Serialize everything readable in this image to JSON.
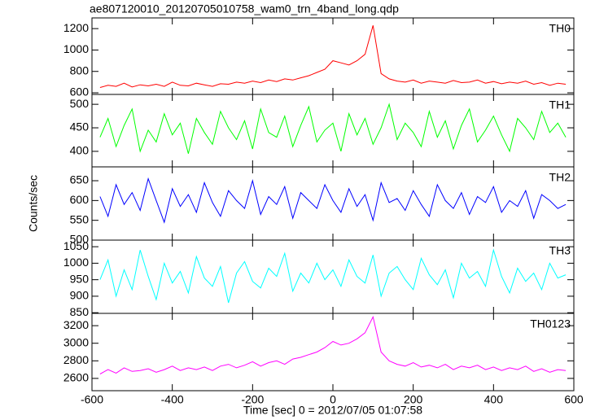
{
  "chart_data": [
    {
      "type": "line",
      "title": "ae807120010_20120705010758_wam0_trn_4band_long.qdp",
      "xlim": [
        -600,
        600
      ],
      "xticks": [
        -600,
        -400,
        -200,
        0,
        200,
        400,
        600
      ],
      "ylim": [
        585,
        1300
      ],
      "yticks": [
        600,
        800,
        1000,
        1200
      ],
      "x": [
        -580,
        -560,
        -540,
        -520,
        -500,
        -480,
        -460,
        -440,
        -420,
        -400,
        -380,
        -360,
        -340,
        -320,
        -300,
        -280,
        -260,
        -240,
        -220,
        -200,
        -180,
        -160,
        -140,
        -120,
        -100,
        -80,
        -60,
        -40,
        -20,
        0,
        20,
        40,
        60,
        80,
        100,
        120,
        140,
        160,
        180,
        200,
        220,
        240,
        260,
        280,
        300,
        320,
        340,
        360,
        380,
        400,
        420,
        440,
        460,
        480,
        500,
        520,
        540,
        560,
        580
      ],
      "series": [
        {
          "name": "TH0",
          "color": "#ff0000",
          "values": [
            650,
            670,
            660,
            690,
            655,
            675,
            665,
            680,
            660,
            700,
            670,
            665,
            690,
            675,
            660,
            685,
            680,
            700,
            690,
            710,
            695,
            720,
            705,
            730,
            720,
            740,
            760,
            790,
            820,
            900,
            880,
            860,
            900,
            960,
            1230,
            780,
            730,
            710,
            700,
            720,
            690,
            710,
            700,
            690,
            715,
            695,
            700,
            720,
            690,
            705,
            685,
            700,
            690,
            710,
            680,
            695,
            670,
            690,
            680
          ]
        }
      ]
    },
    {
      "type": "line",
      "xlim": [
        -600,
        600
      ],
      "xticks": [
        -600,
        -400,
        -200,
        0,
        200,
        400,
        600
      ],
      "ylim": [
        367,
        521
      ],
      "yticks": [
        400,
        450,
        500
      ],
      "x": [
        -580,
        -560,
        -540,
        -520,
        -500,
        -480,
        -460,
        -440,
        -420,
        -400,
        -380,
        -360,
        -340,
        -320,
        -300,
        -280,
        -260,
        -240,
        -220,
        -200,
        -180,
        -160,
        -140,
        -120,
        -100,
        -80,
        -60,
        -40,
        -20,
        0,
        20,
        40,
        60,
        80,
        100,
        120,
        140,
        160,
        180,
        200,
        220,
        240,
        260,
        280,
        300,
        320,
        340,
        360,
        380,
        400,
        420,
        440,
        460,
        480,
        500,
        520,
        540,
        560,
        580
      ],
      "series": [
        {
          "name": "TH1",
          "color": "#00ff00",
          "values": [
            430,
            470,
            410,
            455,
            490,
            400,
            445,
            420,
            480,
            435,
            460,
            395,
            470,
            440,
            415,
            485,
            450,
            425,
            465,
            405,
            490,
            440,
            430,
            475,
            410,
            455,
            495,
            420,
            445,
            460,
            400,
            480,
            435,
            470,
            415,
            450,
            500,
            425,
            460,
            440,
            410,
            485,
            430,
            465,
            405,
            455,
            490,
            420,
            445,
            475,
            435,
            400,
            470,
            450,
            425,
            485,
            440,
            460,
            430
          ]
        }
      ]
    },
    {
      "type": "line",
      "ylabel": "Counts/sec",
      "xlim": [
        -600,
        600
      ],
      "xticks": [
        -600,
        -400,
        -200,
        0,
        200,
        400,
        600
      ],
      "ylim": [
        500,
        685
      ],
      "yticks": [
        500,
        550,
        600,
        650
      ],
      "x": [
        -580,
        -560,
        -540,
        -520,
        -500,
        -480,
        -460,
        -440,
        -420,
        -400,
        -380,
        -360,
        -340,
        -320,
        -300,
        -280,
        -260,
        -240,
        -220,
        -200,
        -180,
        -160,
        -140,
        -120,
        -100,
        -80,
        -60,
        -40,
        -20,
        0,
        20,
        40,
        60,
        80,
        100,
        120,
        140,
        160,
        180,
        200,
        220,
        240,
        260,
        280,
        300,
        320,
        340,
        360,
        380,
        400,
        420,
        440,
        460,
        480,
        500,
        520,
        540,
        560,
        580
      ],
      "series": [
        {
          "name": "TH2",
          "color": "#0000ff",
          "values": [
            610,
            560,
            640,
            590,
            620,
            575,
            655,
            600,
            545,
            630,
            585,
            615,
            570,
            645,
            595,
            560,
            625,
            600,
            580,
            650,
            565,
            610,
            590,
            635,
            555,
            620,
            600,
            580,
            640,
            600,
            570,
            630,
            585,
            615,
            550,
            645,
            595,
            605,
            575,
            625,
            590,
            560,
            640,
            600,
            580,
            620,
            565,
            610,
            595,
            635,
            570,
            600,
            585,
            625,
            555,
            615,
            600,
            580,
            590
          ]
        }
      ]
    },
    {
      "type": "line",
      "xlim": [
        -600,
        600
      ],
      "xticks": [
        -600,
        -400,
        -200,
        0,
        200,
        400,
        600
      ],
      "ylim": [
        848,
        1070
      ],
      "yticks": [
        850,
        900,
        950,
        1000,
        1050
      ],
      "x": [
        -580,
        -560,
        -540,
        -520,
        -500,
        -480,
        -460,
        -440,
        -420,
        -400,
        -380,
        -360,
        -340,
        -320,
        -300,
        -280,
        -260,
        -240,
        -220,
        -200,
        -180,
        -160,
        -140,
        -120,
        -100,
        -80,
        -60,
        -40,
        -20,
        0,
        20,
        40,
        60,
        80,
        100,
        120,
        140,
        160,
        180,
        200,
        220,
        240,
        260,
        280,
        300,
        320,
        340,
        360,
        380,
        400,
        420,
        440,
        460,
        480,
        500,
        520,
        540,
        560,
        580
      ],
      "series": [
        {
          "name": "TH3",
          "color": "#00ffff",
          "values": [
            950,
            1010,
            900,
            980,
            920,
            1040,
            960,
            890,
            1000,
            940,
            975,
            910,
            1020,
            955,
            930,
            990,
            880,
            970,
            1005,
            945,
            925,
            985,
            960,
            1030,
            915,
            970,
            940,
            1000,
            950,
            980,
            930,
            1010,
            960,
            940,
            1025,
            900,
            970,
            990,
            950,
            920,
            1015,
            965,
            935,
            980,
            895,
            1000,
            955,
            975,
            930,
            1040,
            960,
            910,
            985,
            945,
            970,
            920,
            1000,
            955,
            965
          ]
        }
      ]
    },
    {
      "type": "line",
      "xlabel": "Time [sec] 0 = 2012/07/05 01:07:58",
      "xlim": [
        -600,
        600
      ],
      "xticks": [
        -600,
        -400,
        -200,
        0,
        200,
        400,
        600
      ],
      "ylim": [
        2460,
        3340
      ],
      "yticks": [
        2600,
        2800,
        3000,
        3200
      ],
      "x": [
        -580,
        -560,
        -540,
        -520,
        -500,
        -480,
        -460,
        -440,
        -420,
        -400,
        -380,
        -360,
        -340,
        -320,
        -300,
        -280,
        -260,
        -240,
        -220,
        -200,
        -180,
        -160,
        -140,
        -120,
        -100,
        -80,
        -60,
        -40,
        -20,
        0,
        20,
        40,
        60,
        80,
        100,
        120,
        140,
        160,
        180,
        200,
        220,
        240,
        260,
        280,
        300,
        320,
        340,
        360,
        380,
        400,
        420,
        440,
        460,
        480,
        500,
        520,
        540,
        560,
        580
      ],
      "series": [
        {
          "name": "TH0123",
          "color": "#ff00ff",
          "values": [
            2650,
            2700,
            2660,
            2720,
            2680,
            2690,
            2710,
            2670,
            2700,
            2740,
            2690,
            2720,
            2700,
            2730,
            2690,
            2740,
            2760,
            2720,
            2750,
            2790,
            2740,
            2780,
            2800,
            2760,
            2820,
            2840,
            2870,
            2900,
            2950,
            3020,
            2980,
            3000,
            3050,
            3120,
            3300,
            2900,
            2800,
            2760,
            2740,
            2780,
            2730,
            2750,
            2720,
            2760,
            2700,
            2740,
            2720,
            2750,
            2700,
            2730,
            2690,
            2720,
            2700,
            2740,
            2680,
            2710,
            2670,
            2700,
            2690
          ]
        }
      ]
    }
  ]
}
